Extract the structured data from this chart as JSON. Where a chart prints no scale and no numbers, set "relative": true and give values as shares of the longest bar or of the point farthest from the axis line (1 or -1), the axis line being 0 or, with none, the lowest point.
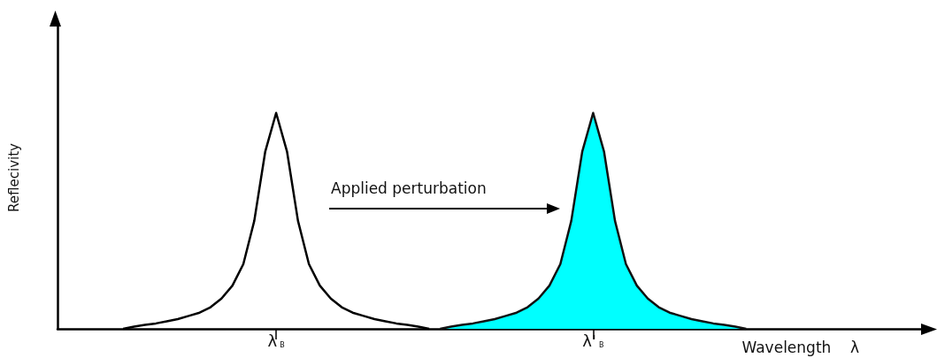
{
  "chart_data": {
    "type": "line",
    "relative": true,
    "ylabel": "Reflecivity",
    "xlabel": "Wavelength    λ",
    "annotations": [
      "Applied perturbation"
    ],
    "marker": "none",
    "categories": [
      null,
      null,
      null,
      null,
      null,
      null,
      null,
      null,
      null,
      null,
      null,
      null,
      null,
      null,
      null,
      null,
      null,
      null,
      null,
      null,
      "λ$_{B}$",
      null,
      null,
      null,
      null,
      null,
      null,
      null,
      null,
      null,
      null,
      null,
      null,
      null,
      null,
      null,
      null,
      null,
      null,
      null,
      null,
      null,
      null,
      null,
      null,
      null,
      null,
      null,
      null,
      "λ'$_{B}$",
      null,
      null,
      null,
      null,
      null,
      null,
      null,
      null,
      null,
      null,
      null,
      null,
      null,
      null,
      null,
      null,
      null,
      null,
      null,
      null,
      null,
      null,
      null,
      null,
      null,
      null,
      null,
      null,
      null,
      null
    ],
    "series": [
      {
        "color": "#000000",
        "values": [
          null,
          null,
          null,
          null,
          null,
          null,
          0,
          0.01,
          0.018,
          0.025,
          0.035,
          0.045,
          0.06,
          0.075,
          0.1,
          0.14,
          0.2,
          0.3,
          0.5,
          0.82,
          1,
          0.82,
          0.5,
          0.3,
          0.2,
          0.14,
          0.1,
          0.075,
          0.06,
          0.045,
          0.035,
          0.025,
          0.018,
          0.01,
          0,
          null,
          null,
          null,
          null,
          null,
          null,
          null,
          null,
          null,
          null,
          null,
          null,
          null,
          null,
          null,
          null,
          null,
          null,
          null,
          null,
          null,
          null,
          null,
          null,
          null,
          null,
          null,
          null,
          null,
          null,
          null,
          null,
          null,
          null,
          null,
          null,
          null,
          null,
          null,
          null,
          null,
          null,
          null,
          null,
          null
        ]
      },
      {
        "type": "area",
        "color": "#00ffff",
        "values": [
          null,
          null,
          null,
          null,
          null,
          null,
          null,
          null,
          null,
          null,
          null,
          null,
          null,
          null,
          null,
          null,
          null,
          null,
          null,
          null,
          null,
          null,
          null,
          null,
          null,
          null,
          null,
          null,
          null,
          null,
          null,
          null,
          null,
          null,
          null,
          0,
          0.01,
          0.018,
          0.025,
          0.035,
          0.045,
          0.06,
          0.075,
          0.1,
          0.14,
          0.2,
          0.3,
          0.5,
          0.82,
          1,
          0.82,
          0.5,
          0.3,
          0.2,
          0.14,
          0.1,
          0.075,
          0.06,
          0.045,
          0.035,
          0.025,
          0.018,
          0.01,
          0,
          null,
          null,
          null,
          null,
          null,
          null,
          null,
          null,
          null,
          null,
          null,
          null,
          null,
          null,
          null,
          null
        ]
      }
    ]
  }
}
